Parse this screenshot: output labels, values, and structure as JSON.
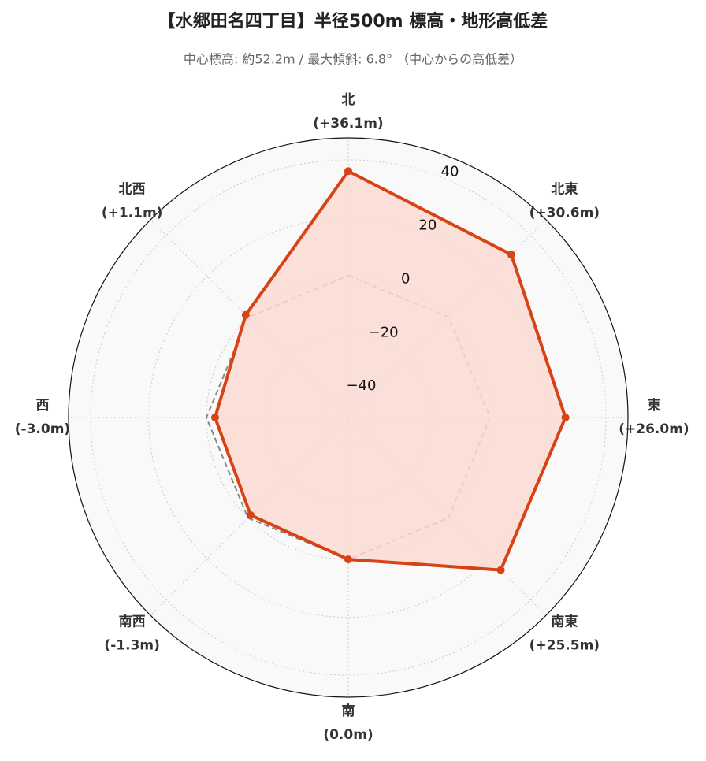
{
  "chart_data": {
    "type": "radar",
    "title": "【水郷田名四丁目】半径500m 標高・地形高低差",
    "subtitle": "中心標高: 約52.2m / 最大傾斜: 6.8° （中心からの高低差）",
    "categories": [
      "北",
      "北東",
      "東",
      "南東",
      "南",
      "南西",
      "西",
      "北西"
    ],
    "values": [
      36.1,
      30.6,
      26.0,
      25.5,
      0.0,
      -1.3,
      -3.0,
      1.1
    ],
    "value_labels": [
      "(+36.1m)",
      "(+30.6m)",
      "(+26.0m)",
      "(+25.5m)",
      "(0.0m)",
      "(-1.3m)",
      "(-3.0m)",
      "(+1.1m)"
    ],
    "color": "#d84315",
    "fill_color": "#fbdcd3",
    "reference_value": 0,
    "ylim": [
      -49,
      47.6
    ],
    "yticks": [
      {
        "value": -40,
        "label": "−40"
      },
      {
        "value": -20,
        "label": "−20"
      },
      0,
      20,
      40
    ],
    "grid": true
  }
}
